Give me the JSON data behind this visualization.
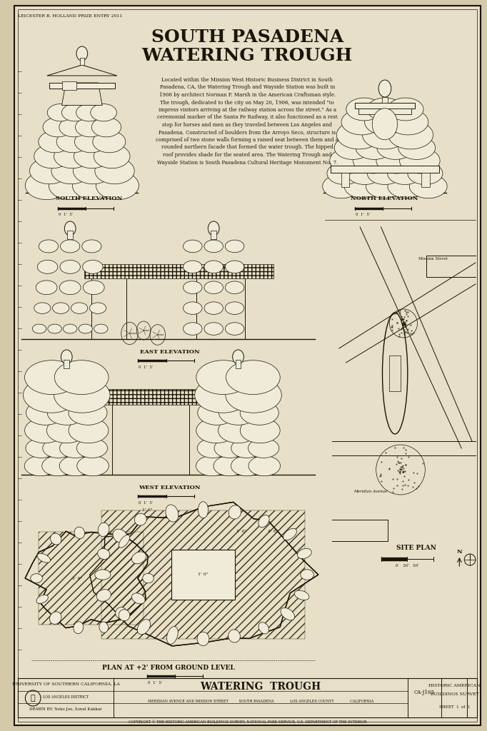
{
  "bg_color": "#d4c9a8",
  "paper_color": "#e8dfc8",
  "inner_paper": "#e0d8c0",
  "line_color": "#1a1505",
  "stone_fill": "#f0ead8",
  "stone_fill2": "#e8e0c8",
  "hatch_color": "#3a3015",
  "title_line1": "SOUTH PASADENA",
  "title_line2": "WATERING TROUGH",
  "description": "Located within the Mission West Historic Business District in South\nPasadena, CA, the Watering Trough and Wayside Station was built in\n1906 by architect Norman F. Marsh in the American Craftsman style.\nThe trough, dedicated to the city on May 20, 1906, was intended \"to\nimpress visitors arriving at the railway station across the street.\" As a\nceremonial marker of the Santa Fe Railway, it also functioned as a rest\nstop for horses and men as they traveled between Los Angeles and\nPasadena. Constructed of boulders from the Arroyo Seco, structure is\ncomprised of two stone walls forming a raised seat between them and a\nrounded northern facade that formed the water trough. The hipped\nroof provides shade for the seated area. The Watering Trough and\nWayside Station is South Pasadena Cultural Heritage Monument No. 7.",
  "south_elevation_label": "SOUTH ELEVATION",
  "north_elevation_label": "NORTH ELEVATION",
  "east_elevation_label": "EAST ELEVATION",
  "west_elevation_label": "WEST ELEVATION",
  "plan_label": "PLAN AT +2' FROM GROUND LEVEL",
  "site_plan_label": "SITE PLAN",
  "footer_title": "WATERING  TROUGH",
  "footer_sub": "MERIDIAN AVENUE AND MISSION STREET          SOUTH PASADENA               LOS ANGELES COUNTY               CALIFORNIA",
  "footer_institution": "UNIVERSITY OF SOUTHERN CALIFORNIA, LA",
  "footer_drawn": "DRAWN BY: Neko Joo, Sonul Kakkar",
  "footer_survey1": "HISTORIC AMERICAN",
  "footer_survey2": "BUILDINGS SURVEY",
  "footer_sheet": "SHEET  1  of  1",
  "header_note": "LEICESTER B. HOLLAND PRIZE ENTRY 2011",
  "prize_note": "CA-J165"
}
